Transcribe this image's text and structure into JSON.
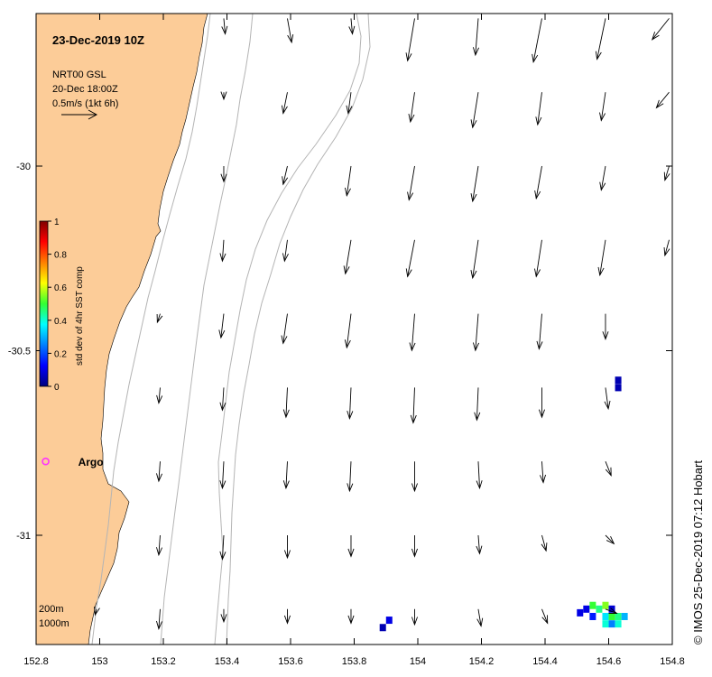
{
  "map": {
    "title": "23-Dec-2019 10Z",
    "product": "NRT00 GSL",
    "product_time": "20-Dec 18:00Z",
    "scale_label": "0.5m/s (1kt 6h)",
    "scale_speed_ms": 0.5,
    "credit": "© IMOS 25-Dec-2019 07:12 Hobart",
    "lon_range": [
      152.8,
      154.8
    ],
    "lat_range": [
      -31.3,
      -29.6
    ],
    "x_ticks": [
      "152.8",
      "153",
      "153.2",
      "153.4",
      "153.6",
      "153.8",
      "154",
      "154.2",
      "154.4",
      "154.6",
      "154.8"
    ],
    "y_ticks": [
      "-30",
      "-30.5",
      "-31"
    ],
    "colors": {
      "land": "#fccc98",
      "isobath": "#b4b4b4",
      "argo": "#ff33ff",
      "axis": "#000000"
    }
  },
  "colorbar": {
    "label": "std dev of 4hr SST comp",
    "ticks": [
      "1",
      "0.8",
      "0.6",
      "0.4",
      "0.2",
      "0"
    ],
    "range": [
      0,
      1
    ],
    "colormap": "jet"
  },
  "legend": {
    "isobath_200": "200m",
    "isobath_1000": "1000m"
  },
  "argo": {
    "label": "Argo",
    "lon": 152.83,
    "lat": -30.8
  },
  "sst_cells": [
    {
      "lon": 154.63,
      "lat": -30.58,
      "value": 0.05
    },
    {
      "lon": 154.63,
      "lat": -30.6,
      "value": 0.05
    },
    {
      "lon": 153.89,
      "lat": -31.25,
      "value": 0.05
    },
    {
      "lon": 153.91,
      "lat": -31.23,
      "value": 0.1
    },
    {
      "lon": 154.53,
      "lat": -31.2,
      "value": 0.1
    },
    {
      "lon": 154.55,
      "lat": -31.19,
      "value": 0.5
    },
    {
      "lon": 154.57,
      "lat": -31.2,
      "value": 0.45
    },
    {
      "lon": 154.59,
      "lat": -31.19,
      "value": 0.55
    },
    {
      "lon": 154.61,
      "lat": -31.2,
      "value": 0.08
    },
    {
      "lon": 154.55,
      "lat": -31.22,
      "value": 0.15
    },
    {
      "lon": 154.59,
      "lat": -31.22,
      "value": 0.35
    },
    {
      "lon": 154.61,
      "lat": -31.22,
      "value": 0.5
    },
    {
      "lon": 154.63,
      "lat": -31.22,
      "value": 0.45
    },
    {
      "lon": 154.65,
      "lat": -31.22,
      "value": 0.3
    },
    {
      "lon": 154.59,
      "lat": -31.24,
      "value": 0.4
    },
    {
      "lon": 154.61,
      "lat": -31.24,
      "value": 0.25
    },
    {
      "lon": 154.63,
      "lat": -31.24,
      "value": 0.4
    },
    {
      "lon": 154.51,
      "lat": -31.21,
      "value": 0.1
    }
  ],
  "current_rows": [
    {
      "lat": -29.6,
      "vectors": [
        [
          153.39,
          0.02,
          -0.22
        ],
        [
          153.59,
          0.06,
          -0.34
        ],
        [
          153.79,
          0.02,
          -0.22
        ],
        [
          153.99,
          -0.1,
          -0.6
        ],
        [
          154.19,
          -0.04,
          -0.52
        ],
        [
          154.39,
          -0.12,
          -0.62
        ],
        [
          154.59,
          -0.12,
          -0.58
        ],
        [
          154.79,
          -0.24,
          -0.3
        ]
      ]
    },
    {
      "lat": -29.8,
      "vectors": [
        [
          153.39,
          0.0,
          -0.1
        ],
        [
          153.59,
          -0.06,
          -0.3
        ],
        [
          153.79,
          -0.04,
          -0.3
        ],
        [
          153.99,
          -0.06,
          -0.42
        ],
        [
          154.19,
          -0.08,
          -0.5
        ],
        [
          154.39,
          -0.06,
          -0.46
        ],
        [
          154.59,
          -0.06,
          -0.4
        ],
        [
          154.79,
          -0.18,
          -0.22
        ]
      ]
    },
    {
      "lat": -30.0,
      "vectors": [
        [
          153.39,
          0.0,
          -0.22
        ],
        [
          153.59,
          -0.06,
          -0.26
        ],
        [
          153.79,
          -0.06,
          -0.42
        ],
        [
          153.99,
          -0.08,
          -0.48
        ],
        [
          154.19,
          -0.08,
          -0.5
        ],
        [
          154.39,
          -0.08,
          -0.46
        ],
        [
          154.59,
          -0.06,
          -0.34
        ],
        [
          154.79,
          -0.06,
          -0.2
        ]
      ]
    },
    {
      "lat": -30.2,
      "vectors": [
        [
          153.39,
          -0.02,
          -0.3
        ],
        [
          153.59,
          -0.04,
          -0.3
        ],
        [
          153.79,
          -0.08,
          -0.48
        ],
        [
          153.99,
          -0.1,
          -0.52
        ],
        [
          154.19,
          -0.08,
          -0.54
        ],
        [
          154.39,
          -0.08,
          -0.52
        ],
        [
          154.59,
          -0.08,
          -0.5
        ],
        [
          154.79,
          -0.06,
          -0.22
        ]
      ]
    },
    {
      "lat": -30.4,
      "vectors": [
        [
          153.19,
          -0.04,
          -0.12
        ],
        [
          153.39,
          -0.04,
          -0.34
        ],
        [
          153.59,
          -0.06,
          -0.42
        ],
        [
          153.79,
          -0.06,
          -0.48
        ],
        [
          153.99,
          -0.04,
          -0.52
        ],
        [
          154.19,
          -0.04,
          -0.52
        ],
        [
          154.39,
          -0.04,
          -0.5
        ],
        [
          154.59,
          0.0,
          -0.36
        ]
      ]
    },
    {
      "lat": -30.6,
      "vectors": [
        [
          153.19,
          -0.02,
          -0.22
        ],
        [
          153.39,
          -0.02,
          -0.32
        ],
        [
          153.59,
          -0.02,
          -0.42
        ],
        [
          153.79,
          -0.02,
          -0.44
        ],
        [
          153.99,
          -0.02,
          -0.5
        ],
        [
          154.19,
          -0.02,
          -0.46
        ],
        [
          154.39,
          0.0,
          -0.42
        ],
        [
          154.59,
          0.04,
          -0.3
        ]
      ]
    },
    {
      "lat": -30.8,
      "vectors": [
        [
          153.19,
          -0.02,
          -0.28
        ],
        [
          153.39,
          -0.02,
          -0.38
        ],
        [
          153.59,
          -0.02,
          -0.38
        ],
        [
          153.79,
          -0.02,
          -0.42
        ],
        [
          153.99,
          0.0,
          -0.42
        ],
        [
          154.19,
          0.02,
          -0.38
        ],
        [
          154.39,
          0.02,
          -0.3
        ],
        [
          154.59,
          0.08,
          -0.2
        ]
      ]
    },
    {
      "lat": -31.0,
      "vectors": [
        [
          153.19,
          -0.02,
          -0.28
        ],
        [
          153.39,
          -0.02,
          -0.34
        ],
        [
          153.59,
          0.0,
          -0.32
        ],
        [
          153.79,
          0.0,
          -0.3
        ],
        [
          153.99,
          0.0,
          -0.3
        ],
        [
          154.19,
          0.02,
          -0.26
        ],
        [
          154.39,
          0.06,
          -0.22
        ],
        [
          154.59,
          0.12,
          -0.12
        ]
      ]
    },
    {
      "lat": -31.2,
      "vectors": [
        [
          152.99,
          -0.02,
          -0.08
        ],
        [
          153.19,
          -0.02,
          -0.28
        ],
        [
          153.39,
          0.0,
          -0.18
        ],
        [
          153.59,
          0.0,
          -0.2
        ],
        [
          153.79,
          0.0,
          -0.2
        ],
        [
          153.99,
          0.0,
          -0.22
        ],
        [
          154.19,
          0.04,
          -0.24
        ],
        [
          154.39,
          0.08,
          -0.2
        ],
        [
          154.59,
          0.16,
          -0.06
        ]
      ]
    }
  ]
}
